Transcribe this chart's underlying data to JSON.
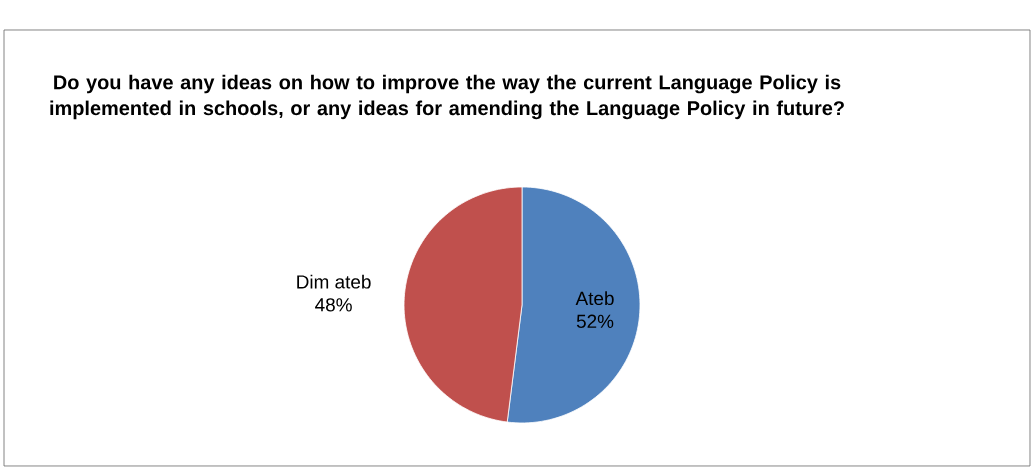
{
  "chart_data": {
    "type": "pie",
    "title": "Do you have any ideas on how to improve the way the current Language Policy is implemented in schools, or any ideas for amending the Language Policy in future?",
    "categories": [
      "Ateb",
      "Dim ateb"
    ],
    "values": [
      52,
      48
    ],
    "colors": [
      "#4f81bd",
      "#c0504d"
    ],
    "value_labels": [
      "52%",
      "48%"
    ]
  }
}
